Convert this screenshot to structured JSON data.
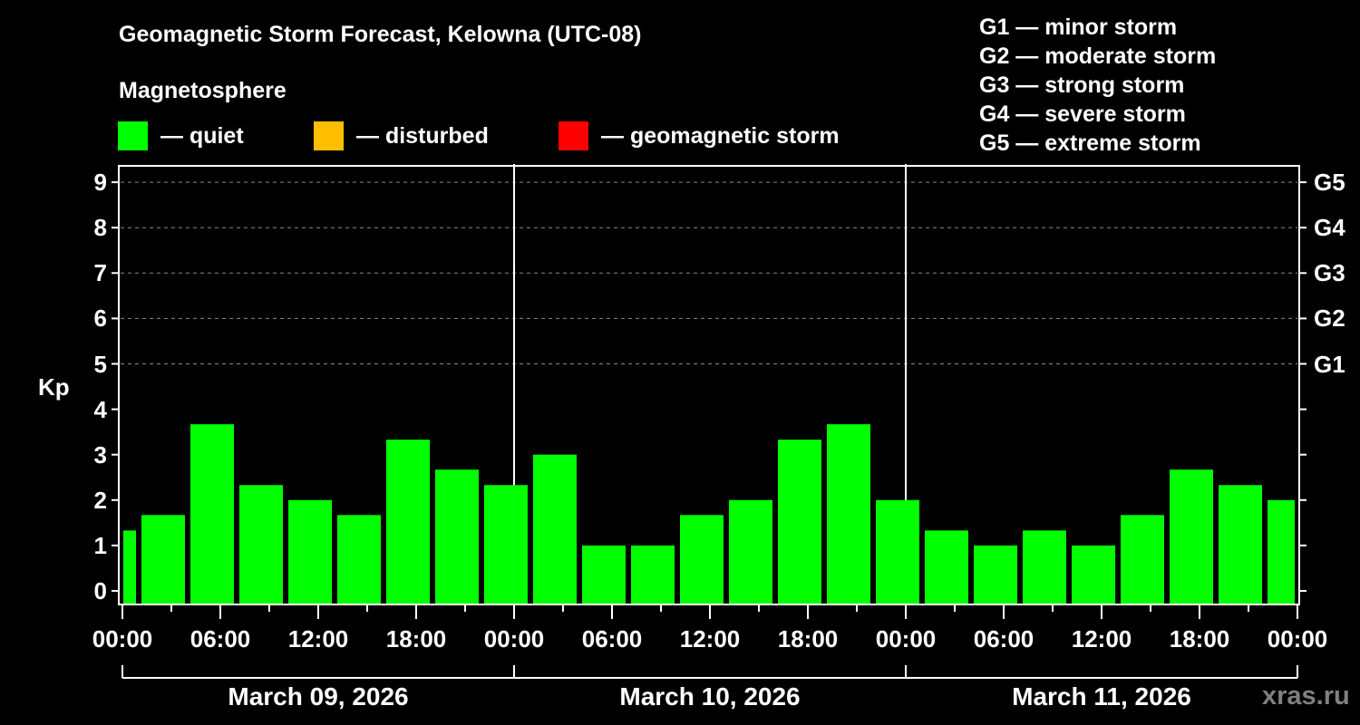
{
  "header": {
    "title": "Geomagnetic Storm Forecast, Kelowna (UTC-08)",
    "subtitle": "Magnetosphere"
  },
  "legend": {
    "items": [
      {
        "label": "— quiet",
        "color": "#00FF00"
      },
      {
        "label": "— disturbed",
        "color": "#FFBF00"
      },
      {
        "label": "— geomagnetic storm",
        "color": "#FF0000"
      }
    ]
  },
  "storm_scale": {
    "items": [
      "G1 — minor storm",
      "G2 — moderate storm",
      "G3 — strong storm",
      "G4 — severe storm",
      "G5 — extreme storm"
    ]
  },
  "axes": {
    "ylabel": "Kp",
    "yticks": [
      "0",
      "1",
      "2",
      "3",
      "4",
      "5",
      "6",
      "7",
      "8",
      "9"
    ],
    "gticks": [
      {
        "label": "G1",
        "kp": 5
      },
      {
        "label": "G2",
        "kp": 6
      },
      {
        "label": "G3",
        "kp": 7
      },
      {
        "label": "G4",
        "kp": 8
      },
      {
        "label": "G5",
        "kp": 9
      }
    ],
    "xticks": [
      "00:00",
      "06:00",
      "12:00",
      "18:00",
      "00:00",
      "06:00",
      "12:00",
      "18:00",
      "00:00",
      "06:00",
      "12:00",
      "18:00",
      "00:00"
    ],
    "dates": [
      "March 09, 2026",
      "March 10, 2026",
      "March 11, 2026"
    ]
  },
  "watermark": "xras.ru",
  "chart_data": {
    "type": "bar",
    "title": "Geomagnetic Storm Forecast, Kelowna (UTC-08)",
    "xlabel": "",
    "ylabel": "Kp",
    "ylim": [
      0,
      9
    ],
    "grid": "dashed horizontal at Kp 5-9",
    "x_range": "March 09, 2026 00:00 to March 12, 2026 00:00 (UTC-08)",
    "bar_interval_hours": 3,
    "series": [
      {
        "name": "Kp",
        "color": "#00FF00",
        "values": [
          1.33,
          1.67,
          3.67,
          2.33,
          2.0,
          1.67,
          3.33,
          2.67,
          2.33,
          3.0,
          1.0,
          1.0,
          1.67,
          2.0,
          3.33,
          3.67,
          2.0,
          1.33,
          1.0,
          1.33,
          1.0,
          1.67,
          2.67,
          2.33,
          2.0
        ]
      }
    ],
    "legend": [
      "quiet",
      "disturbed",
      "geomagnetic storm"
    ]
  }
}
